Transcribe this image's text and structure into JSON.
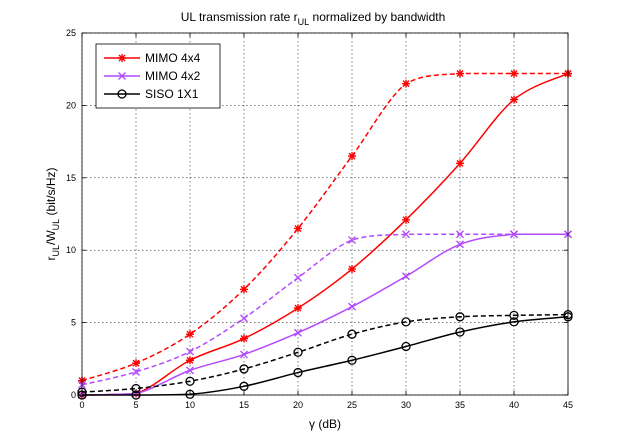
{
  "chart_data": {
    "type": "line",
    "title": {
      "main": "UL transmission rate r",
      "sub": "UL",
      "tail": " normalized by bandwidth"
    },
    "xlabel": "γ (dB)",
    "ylabel": {
      "r": "r",
      "r_sub": "UL",
      "slash": "/W",
      "w_sub": "UL",
      "units": " (bit/s/Hz)"
    },
    "xlim": [
      0,
      45
    ],
    "ylim": [
      0,
      25
    ],
    "xticks": [
      0,
      5,
      10,
      15,
      20,
      25,
      30,
      35,
      40,
      45
    ],
    "yticks": [
      0,
      5,
      10,
      15,
      20,
      25
    ],
    "grid": true,
    "legend_position": "top-left",
    "legend": [
      {
        "label": "MIMO 4x4",
        "color": "#ff0000",
        "marker": "star"
      },
      {
        "label": "MIMO 4x2",
        "color": "#b44aff",
        "marker": "x"
      },
      {
        "label": "SISO 1X1",
        "color": "#000000",
        "marker": "circle"
      }
    ],
    "series": [
      {
        "name": "MIMO 4x4 (dashed)",
        "color": "#ff0000",
        "marker": "star",
        "dashed": true,
        "x": [
          0,
          5,
          10,
          15,
          20,
          25,
          30,
          35,
          40,
          45
        ],
        "values": [
          1.0,
          2.2,
          4.2,
          7.3,
          11.5,
          16.5,
          21.5,
          22.2,
          22.2,
          22.2
        ]
      },
      {
        "name": "MIMO 4x4 (solid)",
        "color": "#ff0000",
        "marker": "star",
        "dashed": false,
        "x": [
          0,
          5,
          10,
          15,
          20,
          25,
          30,
          35,
          40,
          45
        ],
        "values": [
          0.0,
          0.1,
          2.4,
          3.9,
          6.0,
          8.7,
          12.1,
          16.0,
          20.4,
          22.2
        ]
      },
      {
        "name": "MIMO 4x2 (dashed)",
        "color": "#b44aff",
        "marker": "x",
        "dashed": true,
        "x": [
          0,
          5,
          10,
          15,
          20,
          25,
          30,
          35,
          40,
          45
        ],
        "values": [
          0.7,
          1.6,
          3.0,
          5.3,
          8.1,
          10.7,
          11.1,
          11.1,
          11.1,
          11.1
        ]
      },
      {
        "name": "MIMO 4x2 (solid)",
        "color": "#b44aff",
        "marker": "x",
        "dashed": false,
        "x": [
          0,
          5,
          10,
          15,
          20,
          25,
          30,
          35,
          40,
          45
        ],
        "values": [
          0.0,
          0.1,
          1.7,
          2.8,
          4.3,
          6.1,
          8.2,
          10.4,
          11.1,
          11.1
        ]
      },
      {
        "name": "SISO 1X1 (dashed)",
        "color": "#000000",
        "marker": "circle",
        "dashed": true,
        "x": [
          0,
          5,
          10,
          15,
          20,
          25,
          30,
          35,
          40,
          45
        ],
        "values": [
          0.2,
          0.45,
          0.95,
          1.8,
          2.95,
          4.2,
          5.05,
          5.4,
          5.5,
          5.55
        ]
      },
      {
        "name": "SISO 1X1 (solid)",
        "color": "#000000",
        "marker": "circle",
        "dashed": false,
        "x": [
          0,
          5,
          10,
          15,
          20,
          25,
          30,
          35,
          40,
          45
        ],
        "values": [
          0.0,
          0.0,
          0.05,
          0.6,
          1.55,
          2.4,
          3.35,
          4.35,
          5.05,
          5.4
        ]
      }
    ]
  }
}
